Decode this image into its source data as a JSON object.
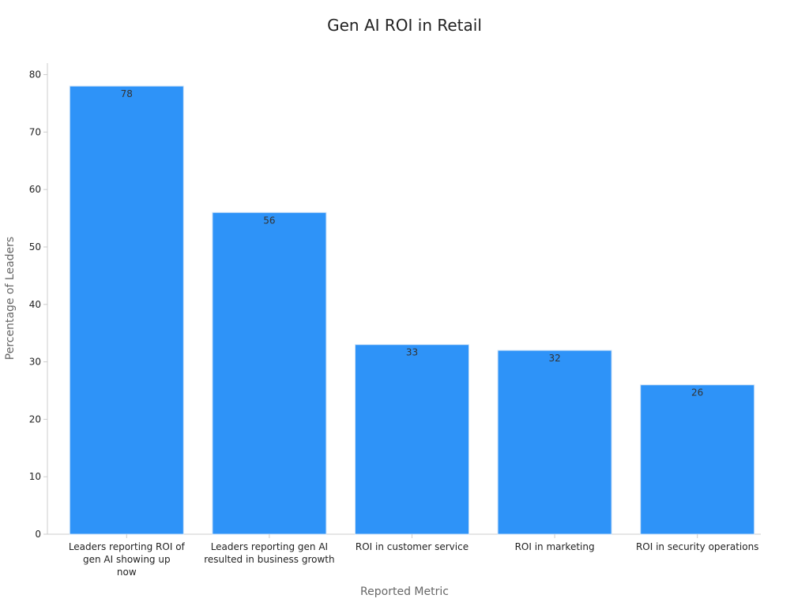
{
  "chart_data": {
    "type": "bar",
    "title": "Gen AI ROI in Retail",
    "xlabel": "Reported Metric",
    "ylabel": "Percentage of Leaders",
    "categories": [
      [
        "Leaders reporting ROI of",
        "gen AI showing up",
        "now"
      ],
      [
        "Leaders reporting gen AI",
        "resulted in business growth"
      ],
      [
        "ROI in customer service"
      ],
      [
        "ROI in marketing"
      ],
      [
        "ROI in security operations"
      ]
    ],
    "values": [
      78,
      56,
      33,
      32,
      26
    ],
    "value_labels": [
      "78",
      "56",
      "33",
      "32",
      "26"
    ],
    "yticks": [
      0,
      10,
      20,
      30,
      40,
      50,
      60,
      70,
      80
    ],
    "ylim": [
      0,
      82
    ],
    "grid": false,
    "colors": {
      "bar": "#2e93f8",
      "bar_edge": "#cfe3f7",
      "axis": "#cccccc",
      "tick_text": "#222222",
      "value_text": "#333333"
    }
  }
}
